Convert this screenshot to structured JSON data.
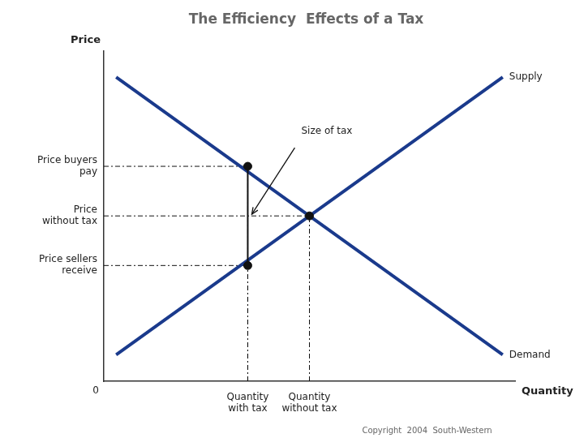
{
  "chart_data": {
    "type": "line",
    "title": "The Efficiency  Effects of a Tax",
    "x_label": "Quantity",
    "y_label": "Price",
    "xlim": [
      0,
      10
    ],
    "ylim": [
      0,
      10
    ],
    "xticks": [],
    "yticks": [],
    "tick_labels": false,
    "grid": false,
    "series": [
      {
        "name": "Supply",
        "color": "#1a3a8c",
        "x": [
          0.3,
          9.7
        ],
        "values": [
          0.8,
          9.2
        ]
      },
      {
        "name": "Demand",
        "color": "#1a3a8c",
        "x": [
          0.3,
          9.7
        ],
        "values": [
          9.2,
          0.8
        ]
      }
    ],
    "points": {
      "color": "#111111",
      "x": [
        3.5,
        3.5,
        5.0
      ],
      "values": [
        6.5,
        3.5,
        5.0
      ]
    },
    "price_labels": [
      {
        "value": 6.5,
        "label": "Price buyers\npay"
      },
      {
        "value": 5.0,
        "label": "Price\nwithout tax"
      },
      {
        "value": 3.5,
        "label": "Price sellers\nreceive"
      }
    ],
    "quantity_labels": [
      {
        "value": 3.5,
        "label": "Quantity\nwith tax"
      },
      {
        "value": 5.0,
        "label": "Quantity\nwithout tax"
      }
    ],
    "tax": {
      "label": "Size of tax",
      "x": 3.5,
      "low": 3.5,
      "high": 6.5
    },
    "origin_label": "0",
    "footnote": "Copyright  2004  South-Western"
  }
}
